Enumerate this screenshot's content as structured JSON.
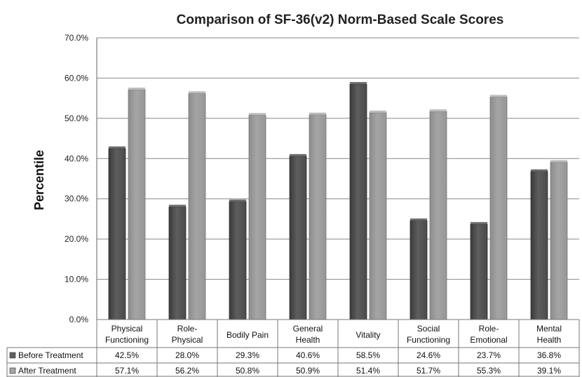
{
  "chart_data": {
    "type": "bar",
    "title": "Comparison of SF-36(v2) Norm-Based Scale Scores",
    "xlabel": "",
    "ylabel": "Percentile",
    "ylim": [
      0,
      70
    ],
    "yticks": [
      "0.0%",
      "10.0%",
      "20.0%",
      "30.0%",
      "40.0%",
      "50.0%",
      "60.0%",
      "70.0%"
    ],
    "grid": true,
    "legend": "data-table",
    "categories": [
      [
        "Physical",
        "Functioning"
      ],
      [
        "Role-",
        "Physical"
      ],
      [
        "Bodily Pain"
      ],
      [
        "General",
        "Health"
      ],
      [
        "Vitality"
      ],
      [
        "Social",
        "Functioning"
      ],
      [
        "Role-",
        "Emotional"
      ],
      [
        "Mental",
        "Health"
      ]
    ],
    "series": [
      {
        "name": "Before Treatment",
        "color": "#5e5e5e",
        "values": [
          42.5,
          28.0,
          29.3,
          40.6,
          58.5,
          24.6,
          23.7,
          36.8
        ],
        "labels": [
          "42.5%",
          "28.0%",
          "29.3%",
          "40.6%",
          "58.5%",
          "24.6%",
          "23.7%",
          "36.8%"
        ]
      },
      {
        "name": "After Treatment",
        "color": "#a5a5a5",
        "values": [
          57.1,
          56.2,
          50.8,
          50.9,
          51.4,
          51.7,
          55.3,
          39.1
        ],
        "labels": [
          "57.1%",
          "56.2%",
          "50.8%",
          "50.9%",
          "51.4%",
          "51.7%",
          "55.3%",
          "39.1%"
        ]
      }
    ]
  }
}
